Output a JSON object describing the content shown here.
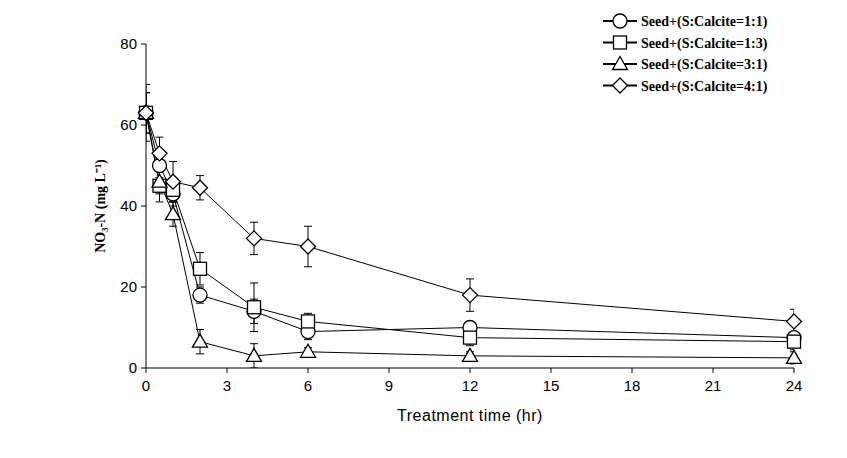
{
  "chart_data": {
    "type": "line",
    "x_label": "Treatment time (hr)",
    "y_label": "NO₃-N (mg L⁻¹)",
    "x": [
      0,
      0.5,
      1,
      2,
      4,
      6,
      12,
      24
    ],
    "xlim": [
      0,
      24
    ],
    "xticks": [
      0,
      3,
      6,
      9,
      12,
      15,
      18,
      21,
      24
    ],
    "ylim": [
      0,
      80
    ],
    "yticks": [
      0,
      20,
      40,
      60,
      80
    ],
    "grid": false,
    "legend": "top-right",
    "series": [
      {
        "name": "Seed+(S:Calcite=1:1)",
        "color": "#000000",
        "marker": "circle",
        "line_style": "solid",
        "values": [
          63,
          50,
          43,
          18,
          14,
          9,
          10,
          7.5
        ],
        "errors": [
          5,
          3,
          3,
          2,
          3,
          2,
          1,
          1
        ]
      },
      {
        "name": "Seed+(S:Calcite=1:3)",
        "color": "#000000",
        "marker": "square",
        "line_style": "solid",
        "values": [
          63,
          45,
          44,
          24.5,
          15,
          11.5,
          7.5,
          6.5
        ],
        "errors": [
          7,
          4,
          3,
          4,
          6,
          2,
          2,
          2
        ]
      },
      {
        "name": "Seed+(S:Calcite=3:1)",
        "color": "#000000",
        "marker": "triangle",
        "line_style": "solid",
        "values": [
          63,
          46,
          38,
          6.5,
          3,
          4,
          3,
          2.5
        ],
        "errors": [
          5,
          3,
          3,
          3,
          3,
          1,
          1,
          1.5
        ]
      },
      {
        "name": "Seed+(S:Calcite=4:1)",
        "color": "#000000",
        "marker": "diamond",
        "line_style": "solid",
        "values": [
          63,
          53,
          46,
          44.5,
          32,
          30,
          18,
          11.5
        ],
        "errors": [
          5,
          4,
          5,
          3,
          4,
          5,
          4,
          3
        ]
      }
    ]
  }
}
